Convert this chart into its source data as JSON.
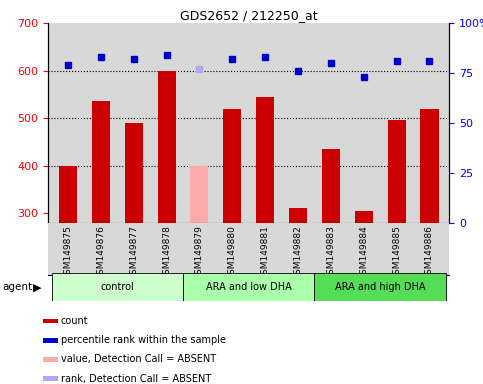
{
  "title": "GDS2652 / 212250_at",
  "samples": [
    "GSM149875",
    "GSM149876",
    "GSM149877",
    "GSM149878",
    "GSM149879",
    "GSM149880",
    "GSM149881",
    "GSM149882",
    "GSM149883",
    "GSM149884",
    "GSM149885",
    "GSM149886"
  ],
  "bar_values": [
    400,
    535,
    490,
    600,
    400,
    520,
    545,
    310,
    435,
    305,
    497,
    520
  ],
  "bar_colors": [
    "#cc0000",
    "#cc0000",
    "#cc0000",
    "#cc0000",
    "#ffaaaa",
    "#cc0000",
    "#cc0000",
    "#cc0000",
    "#cc0000",
    "#cc0000",
    "#cc0000",
    "#cc0000"
  ],
  "dot_values": [
    79,
    83,
    82,
    84,
    77,
    82,
    83,
    76,
    80,
    73,
    81,
    81
  ],
  "dot_absent": [
    false,
    false,
    false,
    false,
    true,
    false,
    false,
    false,
    false,
    false,
    false,
    false
  ],
  "ylim_left": [
    280,
    700
  ],
  "ylim_right": [
    0,
    100
  ],
  "yticks_left": [
    300,
    400,
    500,
    600,
    700
  ],
  "yticks_right": [
    0,
    25,
    50,
    75,
    100
  ],
  "grid_values": [
    400,
    500,
    600
  ],
  "groups": [
    {
      "label": "control",
      "start": 0,
      "end": 3,
      "color": "#ccffcc"
    },
    {
      "label": "ARA and low DHA",
      "start": 4,
      "end": 7,
      "color": "#aaffaa"
    },
    {
      "label": "ARA and high DHA",
      "start": 8,
      "end": 11,
      "color": "#55dd55"
    }
  ],
  "legend": [
    {
      "color": "#cc0000",
      "label": "count"
    },
    {
      "color": "#0000cc",
      "label": "percentile rank within the sample"
    },
    {
      "color": "#ffaaaa",
      "label": "value, Detection Call = ABSENT"
    },
    {
      "color": "#aaaaee",
      "label": "rank, Detection Call = ABSENT"
    }
  ],
  "bar_bottom": 280,
  "facecolor": "#d8d8d8"
}
